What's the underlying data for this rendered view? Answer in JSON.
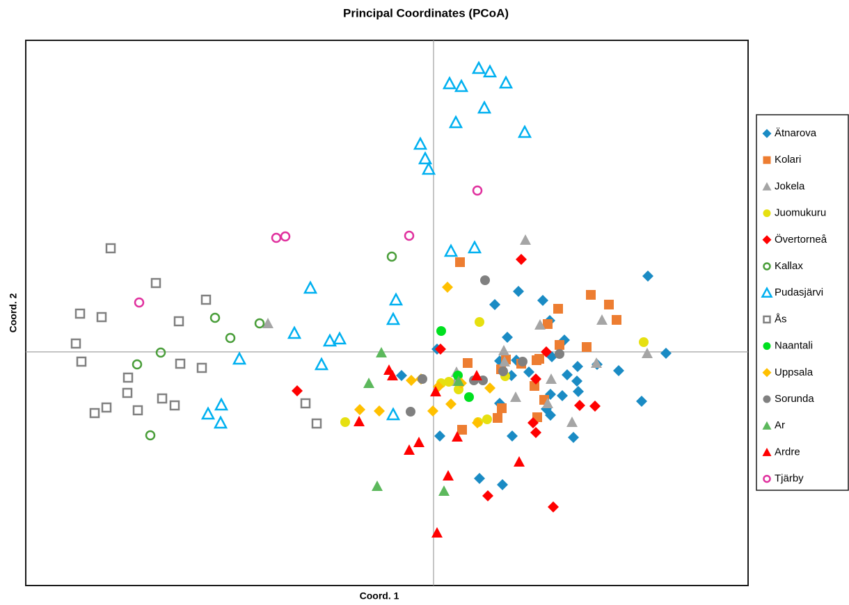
{
  "chart_data": {
    "type": "scatter",
    "title": "Principal Coordinates (PCoA)",
    "x_label": "Coord. 1",
    "y_label": "Coord. 2",
    "xlim": [
      -586,
      452
    ],
    "ylim": [
      -336,
      448
    ],
    "series": [
      {
        "name": "Ätnarova",
        "color": "#1a8bc4",
        "marker": "diamond",
        "filled": true,
        "x": [
          308,
          122,
          88,
          157,
          167,
          106,
          188,
          5,
          170,
          95,
          119,
          137,
          207,
          235,
          266,
          192,
          206,
          112,
          -46,
          208,
          185,
          168,
          95,
          162,
          168,
          299,
          334,
          9,
          113,
          201,
          66,
          99
        ],
        "values": [
          109,
          87,
          68,
          74,
          45,
          21,
          17,
          4,
          -7,
          -13,
          -12,
          -29,
          -21,
          -18,
          -27,
          -33,
          -42,
          -34,
          -34,
          -57,
          -63,
          -61,
          -74,
          -82,
          -91,
          -71,
          -2,
          -121,
          -121,
          -123,
          -182,
          -191
        ]
      },
      {
        "name": "Kolari",
        "color": "#ed7d31",
        "marker": "square",
        "filled": true,
        "x": [
          38,
          226,
          252,
          179,
          263,
          164,
          220,
          181,
          49,
          152,
          148,
          126,
          104,
          97,
          145,
          159,
          98,
          92,
          149,
          41
        ],
        "values": [
          129,
          82,
          68,
          62,
          46,
          40,
          7,
          10,
          -16,
          -10,
          -12,
          -17,
          -11,
          -25,
          -49,
          -69,
          -81,
          -95,
          -94,
          -112
        ]
      },
      {
        "name": "Jokela",
        "color": "#a5a5a5",
        "marker": "triangle",
        "filled": true,
        "x": [
          132,
          -238,
          153,
          242,
          307,
          101,
          102,
          234,
          33,
          169,
          118,
          164,
          199,
          32
        ],
        "values": [
          161,
          41,
          39,
          46,
          -2,
          2,
          -14,
          -16,
          -29,
          -39,
          -65,
          -74,
          -101,
          -42
        ]
      },
      {
        "name": "Juomukuru",
        "color": "#e6e010",
        "marker": "circle",
        "filled": true,
        "x": [
          66,
          302,
          22,
          103,
          36,
          77,
          64,
          -127,
          11
        ],
        "values": [
          43,
          14,
          -43,
          -35,
          -54,
          -97,
          -101,
          -101,
          -45
        ]
      },
      {
        "name": "Övertorneå",
        "color": "#ff0000",
        "marker": "diamond",
        "filled": true,
        "x": [
          126,
          10,
          162,
          147,
          -196,
          210,
          232,
          143,
          147,
          78,
          172
        ],
        "values": [
          133,
          4,
          0,
          -39,
          -56,
          -77,
          -78,
          -102,
          -116,
          -207,
          -223
        ]
      },
      {
        "name": "Kallax",
        "color": "#4a9e3a",
        "marker": "circle",
        "filled": false,
        "x": [
          -60,
          -314,
          -250,
          -292,
          -392,
          -426,
          -407
        ],
        "values": [
          137,
          49,
          41,
          20,
          -1,
          -18,
          -120
        ]
      },
      {
        "name": "Pudasjärvi",
        "color": "#00b0f0",
        "marker": "triangle",
        "filled": false,
        "x": [
          65,
          81,
          23,
          40,
          104,
          73,
          32,
          131,
          -19,
          -12,
          -7,
          25,
          59,
          -177,
          -54,
          -58,
          -200,
          -149,
          -135,
          -279,
          -161,
          -305,
          -324,
          -306,
          -58
        ],
        "values": [
          408,
          403,
          386,
          382,
          387,
          351,
          330,
          316,
          299,
          278,
          263,
          145,
          150,
          92,
          75,
          47,
          27,
          16,
          19,
          -10,
          -18,
          -76,
          -89,
          -102,
          -90
        ]
      },
      {
        "name": "Ås",
        "color": "#808080",
        "marker": "square",
        "filled": false,
        "x": [
          -464,
          -399,
          -327,
          -508,
          -477,
          -366,
          -514,
          -506,
          -364,
          -333,
          -439,
          -440,
          -390,
          -372,
          -184,
          -470,
          -487,
          -425,
          -168
        ],
        "values": [
          149,
          99,
          75,
          55,
          50,
          44,
          12,
          -14,
          -17,
          -23,
          -37,
          -59,
          -67,
          -77,
          -74,
          -80,
          -88,
          -84,
          -103
        ]
      },
      {
        "name": "Naantali",
        "color": "#00e020",
        "marker": "circle",
        "filled": true,
        "x": [
          11,
          35,
          51
        ],
        "values": [
          30,
          -34,
          -65
        ]
      },
      {
        "name": "Uppsala",
        "color": "#ffc000",
        "marker": "diamond",
        "filled": true,
        "x": [
          20,
          -32,
          -18,
          7,
          40,
          25,
          81,
          -106,
          -78,
          -1,
          63
        ],
        "values": [
          93,
          -41,
          -39,
          -50,
          -45,
          -75,
          -52,
          -83,
          -85,
          -85,
          -102
        ]
      },
      {
        "name": "Sorunda",
        "color": "#808080",
        "marker": "circle",
        "filled": true,
        "x": [
          74,
          -16,
          58,
          71,
          100,
          128,
          -33,
          181
        ],
        "values": [
          103,
          -39,
          -41,
          -41,
          -28,
          -14,
          -86,
          -3
        ]
      },
      {
        "name": "Ar",
        "color": "#5cb85c",
        "marker": "triangle",
        "filled": true,
        "x": [
          -75,
          -93,
          36,
          -81,
          15
        ],
        "values": [
          -1,
          -45,
          -42,
          -193,
          -200
        ]
      },
      {
        "name": "Ardre",
        "color": "#ff0000",
        "marker": "triangle",
        "filled": true,
        "x": [
          -64,
          -59,
          62,
          3,
          -107,
          -21,
          -35,
          34,
          123,
          21,
          5
        ],
        "values": [
          -26,
          -34,
          -34,
          -57,
          -100,
          -130,
          -141,
          -122,
          -158,
          -178,
          -260
        ]
      },
      {
        "name": "Tjärby",
        "color": "#e0309e",
        "marker": "circle",
        "filled": false,
        "x": [
          63,
          -226,
          -213,
          -35,
          -423
        ],
        "values": [
          232,
          164,
          166,
          167,
          71
        ]
      }
    ]
  }
}
